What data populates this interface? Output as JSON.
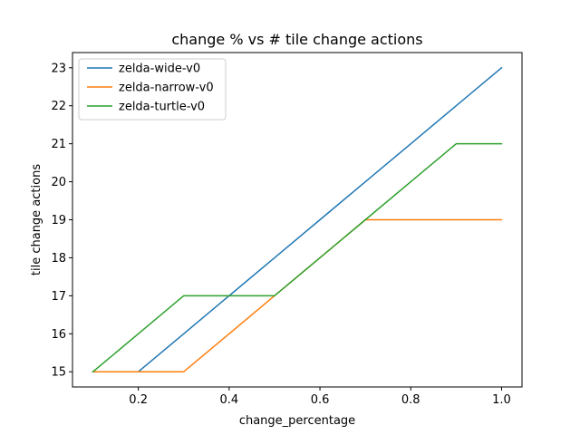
{
  "chart_data": {
    "type": "line",
    "title": "change % vs # tile change actions",
    "xlabel": "change_percentage",
    "ylabel": "tile change actions",
    "x": [
      0.1,
      0.2,
      0.3,
      0.4,
      0.5,
      0.6,
      0.7,
      0.8,
      0.9,
      1.0
    ],
    "series": [
      {
        "name": "zelda-wide-v0",
        "color": "#1f77b4",
        "values": [
          15,
          15,
          16,
          17,
          18,
          19,
          20,
          21,
          22,
          23
        ]
      },
      {
        "name": "zelda-narrow-v0",
        "color": "#ff7f0e",
        "values": [
          15,
          15,
          15,
          16,
          17,
          18,
          19,
          19,
          19,
          19
        ]
      },
      {
        "name": "zelda-turtle-v0",
        "color": "#2ca02c",
        "values": [
          15,
          16,
          17,
          17,
          17,
          18,
          19,
          20,
          21,
          21
        ]
      }
    ],
    "xlim": [
      0.055,
      1.045
    ],
    "ylim": [
      14.6,
      23.4
    ],
    "xticks": [
      "0.2",
      "0.4",
      "0.6",
      "0.8",
      "1.0"
    ],
    "yticks": [
      "15",
      "16",
      "17",
      "18",
      "19",
      "20",
      "21",
      "22",
      "23"
    ],
    "grid": false,
    "legend_position": "upper left"
  }
}
